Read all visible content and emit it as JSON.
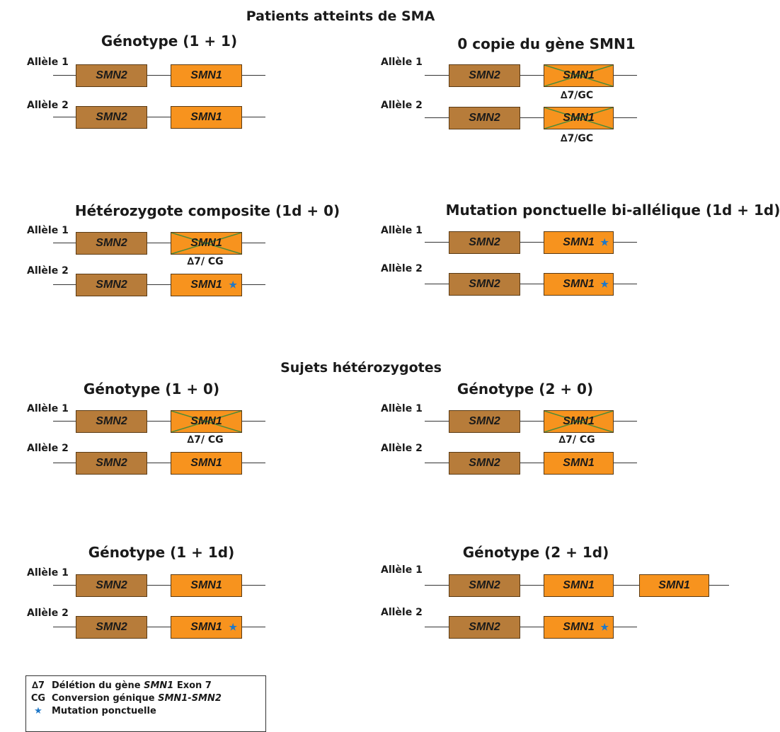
{
  "titles": {
    "sma_patients": "Patients atteints de SMA",
    "heterozygous_subjects": "Sujets hétérozygotes"
  },
  "labels": {
    "allele1": "Allèle 1",
    "allele2": "Allèle 2",
    "smn1": "SMN1",
    "smn2": "SMN2",
    "delta_gc": "∆7/GC",
    "delta_cg": "∆7/ CG",
    "star": "★"
  },
  "panels": {
    "g11": "Génotype (1 + 1)",
    "zero_copy": "0 copie du gène SMN1",
    "composite": "Hétérozygote composite (1d  + 0)",
    "biallelic": "Mutation ponctuelle bi-allélique (1d + 1d)",
    "g10": "Génotype (1 + 0)",
    "g20": "Génotype (2 + 0)",
    "g11d": "Génotype (1 + 1d)",
    "g21d": "Génotype (2 + 1d)"
  },
  "legend": {
    "delta_symbol": "∆7",
    "deletion_prefix": "Délétion du gène ",
    "deletion_gene": "SMN1",
    "deletion_suffix": " Exon 7",
    "cg_symbol": "CG",
    "conversion_prefix": "Conversion génique ",
    "conversion_genes": "SMN1-SMN2",
    "star_symbol": "★",
    "mutation": "Mutation ponctuelle"
  },
  "colors": {
    "smn2_fill": "#b77c3a",
    "smn1_fill": "#f7931e",
    "cross_stroke": "#4a8a3a",
    "star": "#1f78c8"
  }
}
